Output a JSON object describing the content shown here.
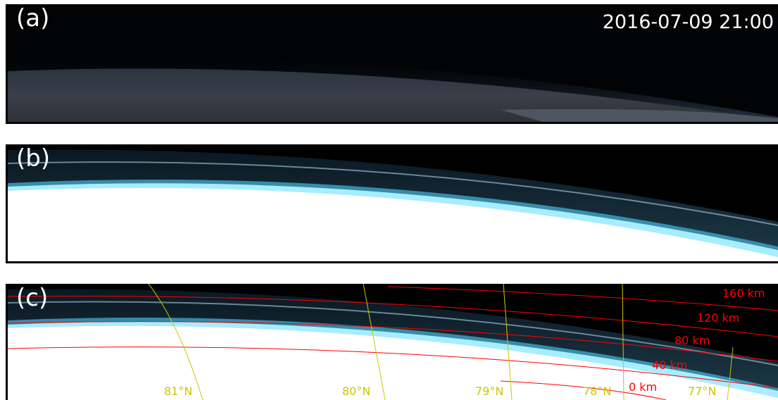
{
  "panels": [
    {
      "label": "(a)",
      "timestamp": "2016-07-09 21:00"
    },
    {
      "label": "(b)"
    },
    {
      "label": "(c)"
    }
  ],
  "overlay": {
    "altitude_color": "#ff0000",
    "latitude_color": "#c8c800",
    "altitude_labels": [
      "160 km",
      "120 km",
      "80 km",
      "40 km",
      "0 km"
    ],
    "latitude_labels": [
      "81°N",
      "80°N",
      "79°N",
      "78°N",
      "77°N"
    ]
  }
}
